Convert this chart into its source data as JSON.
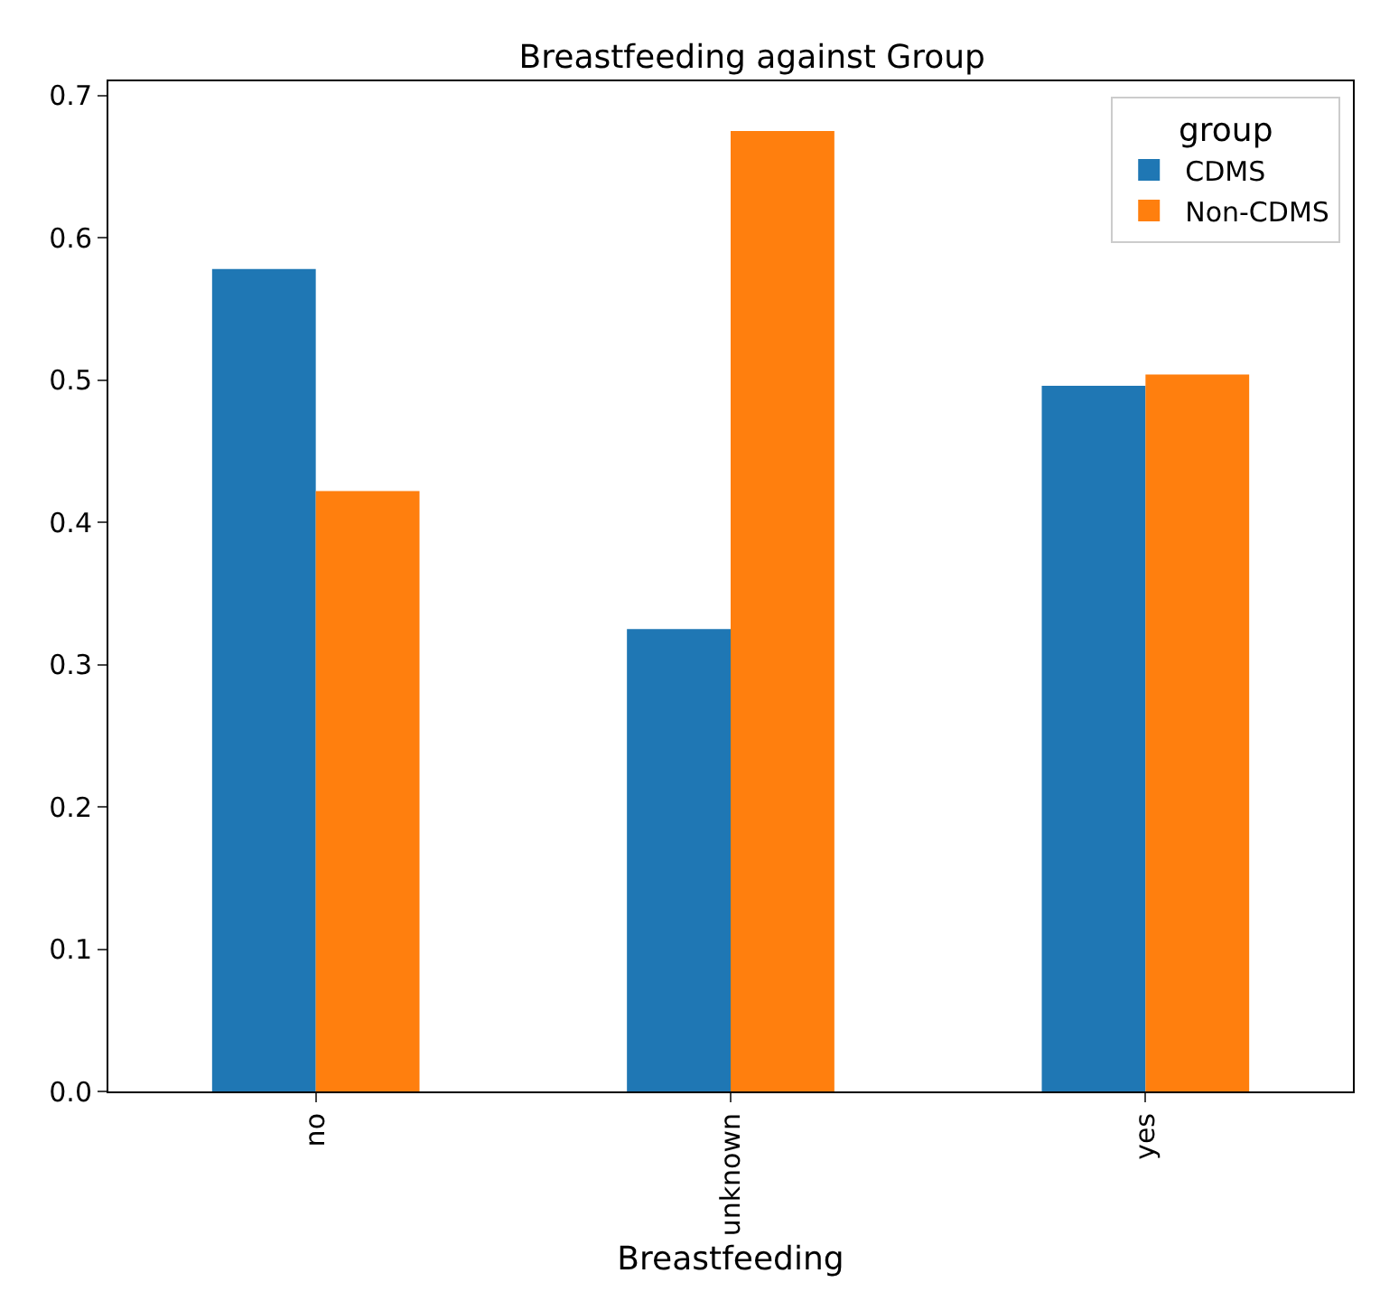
{
  "chart_data": {
    "type": "bar",
    "title": "Breastfeeding against Group",
    "xlabel": "Breastfeeding",
    "legend_title": "group",
    "categories": [
      "no",
      "unknown",
      "yes"
    ],
    "series": [
      {
        "name": "CDMS",
        "color": "#1f77b4",
        "values": [
          0.578,
          0.325,
          0.496
        ]
      },
      {
        "name": "Non-CDMS",
        "color": "#ff7f0e",
        "values": [
          0.422,
          0.675,
          0.504
        ]
      }
    ],
    "ylim": [
      0,
      0.71
    ],
    "yticks": [
      {
        "value": 0,
        "label": "0.0"
      },
      0.1,
      0.2,
      0.3,
      0.4,
      0.5,
      0.6,
      0.7
    ],
    "legend": "top right"
  }
}
